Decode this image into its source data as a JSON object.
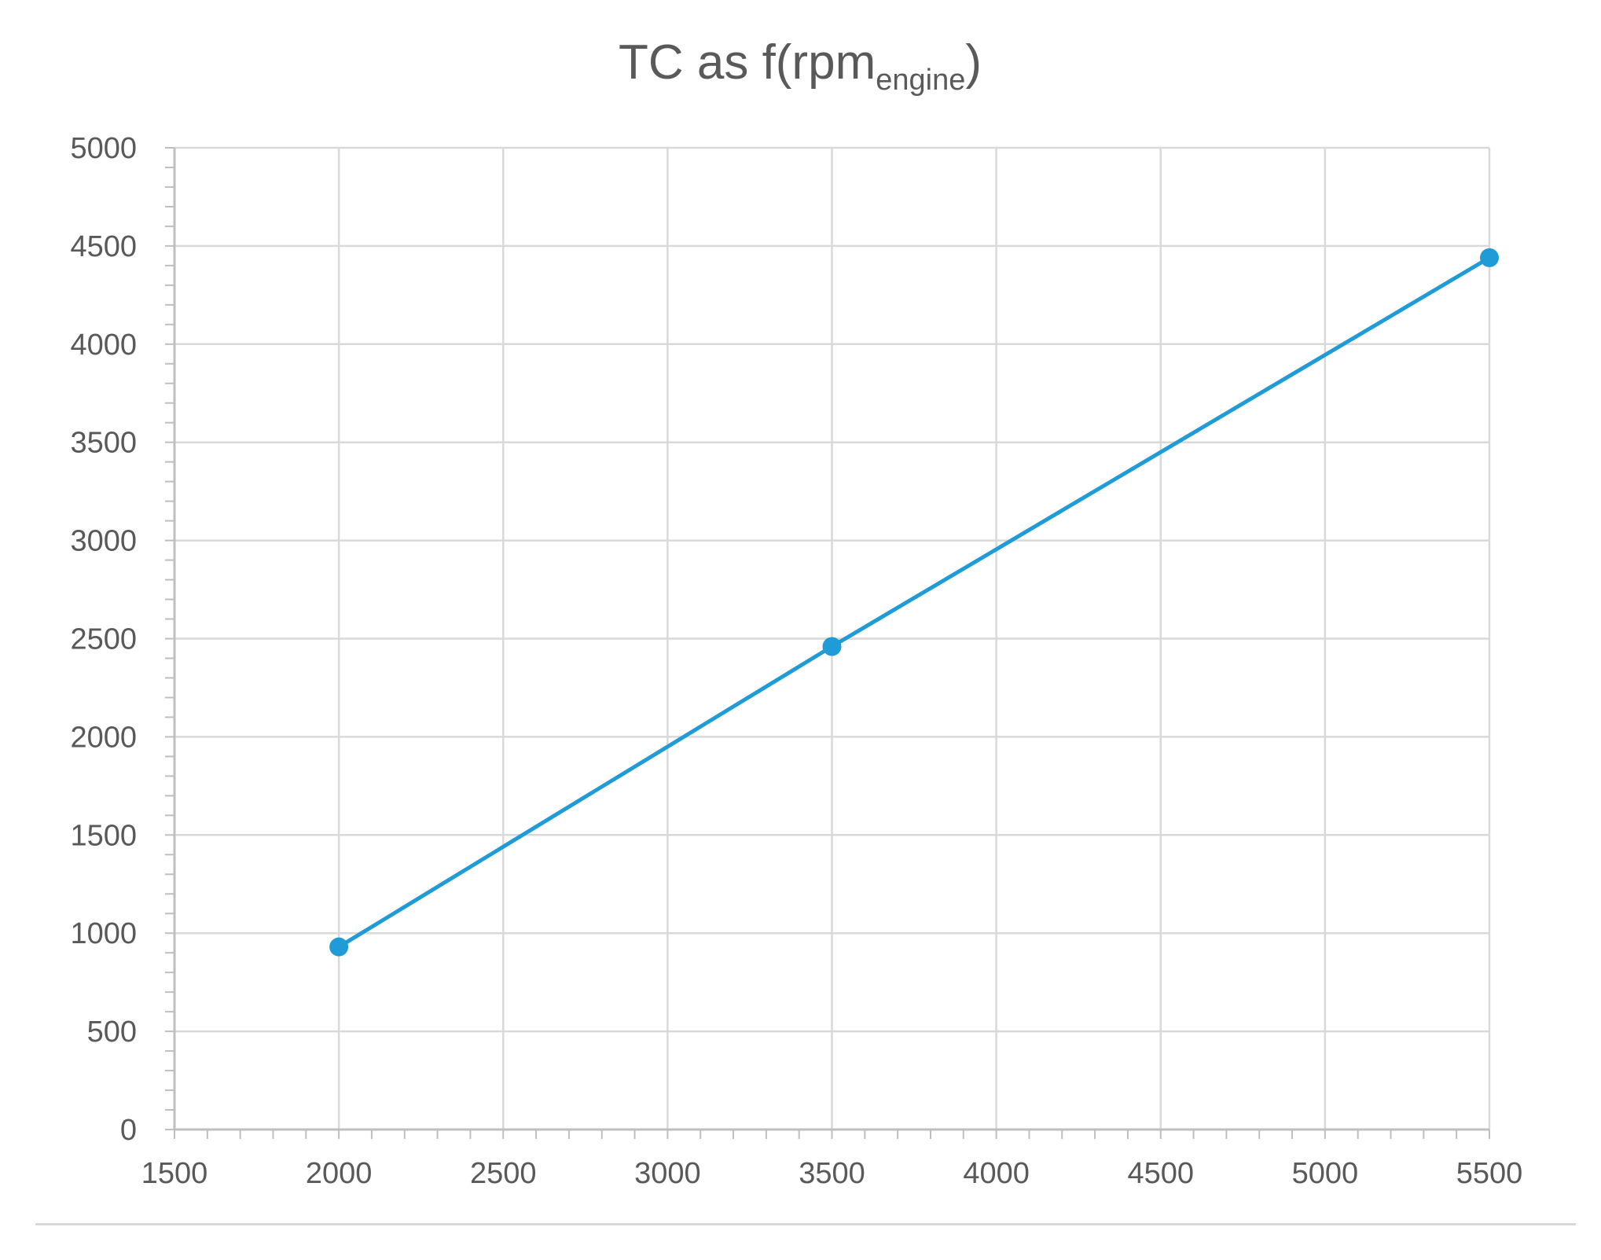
{
  "chart_data": {
    "type": "line",
    "title": {
      "main": "TC as f(rpm",
      "subscript": "engine",
      "suffix": ")"
    },
    "xlabel": "",
    "ylabel": "",
    "xlim": [
      1500,
      5500
    ],
    "ylim": [
      0,
      5000
    ],
    "x_ticks": [
      1500,
      2000,
      2500,
      3000,
      3500,
      4000,
      4500,
      5000,
      5500
    ],
    "y_ticks": [
      0,
      500,
      1000,
      1500,
      2000,
      2500,
      3000,
      3500,
      4000,
      4500,
      5000
    ],
    "grid": true,
    "legend": "none",
    "series": [
      {
        "color": "#1f9bd7",
        "marker": "circle",
        "points": [
          {
            "x": 2000,
            "y": 930
          },
          {
            "x": 3500,
            "y": 2460
          },
          {
            "x": 5500,
            "y": 4440
          }
        ]
      }
    ]
  }
}
